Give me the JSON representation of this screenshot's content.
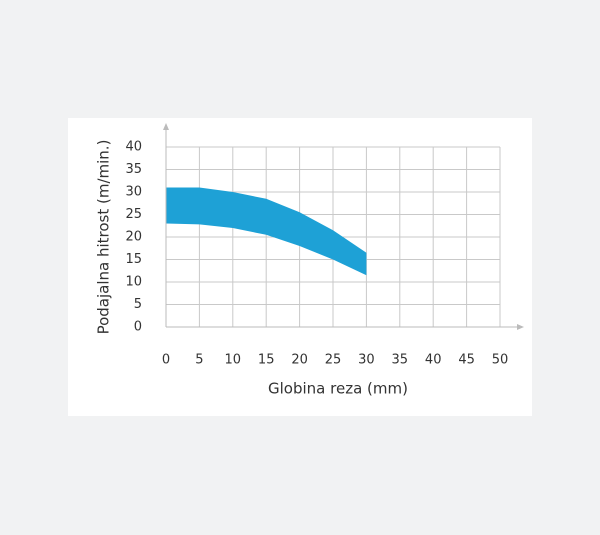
{
  "chart_data": {
    "type": "range-area",
    "x_label": "Globina reza (mm)",
    "y_label": "Podajalna hitrost (m/min.)",
    "x": [
      0,
      5,
      10,
      15,
      20,
      25,
      30
    ],
    "high": [
      31,
      31,
      30,
      28.5,
      25.5,
      21.5,
      16.5
    ],
    "low": [
      23,
      22.8,
      22,
      20.5,
      18,
      15,
      11.5
    ],
    "color": "#1ea1d6",
    "xlim": [
      0,
      50
    ],
    "xticks": [
      0,
      5,
      10,
      15,
      20,
      25,
      30,
      35,
      40,
      45,
      50
    ],
    "ylim": [
      0,
      40
    ],
    "yticks": [
      0,
      5,
      10,
      15,
      20,
      25,
      30,
      35,
      40
    ],
    "grid": true
  }
}
